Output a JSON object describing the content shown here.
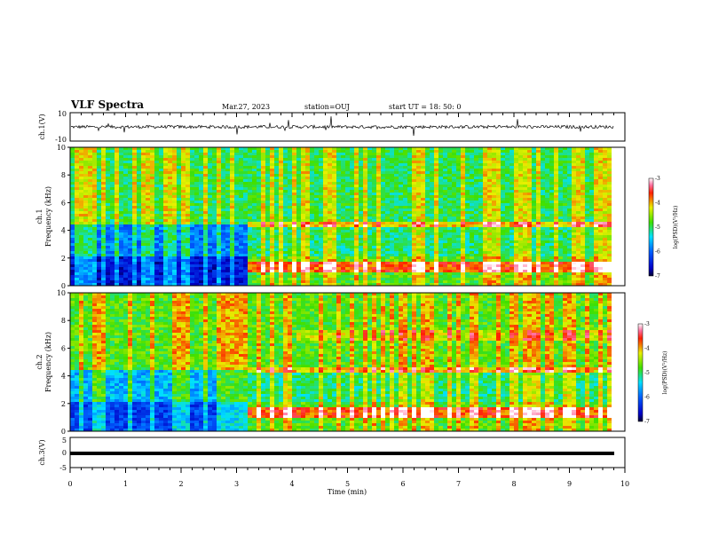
{
  "header": {
    "title": "VLF Spectra",
    "date": "Mar.27, 2023",
    "station": "station=OUJ",
    "start": "start UT =  18: 50: 0"
  },
  "chart_data": [
    {
      "type": "line",
      "panel": "ch1-waveform",
      "ylabel": "ch.1(V)",
      "yticks": [
        "10",
        "-10"
      ],
      "ylim": [
        -10,
        10
      ],
      "xlim": [
        0,
        10
      ]
    },
    {
      "type": "heatmap",
      "panel": "ch1-spectrogram",
      "ylabel": "ch.1 Frequency (kHz)",
      "ylabel_lines": [
        "ch.1",
        "Frequency (kHz)"
      ],
      "yticks": [
        "0",
        "2",
        "4",
        "6",
        "8",
        "10"
      ],
      "ylim": [
        0,
        10
      ],
      "xlim": [
        0,
        10
      ],
      "colorbar": {
        "label": "log(PSD)(V²/Hz)",
        "ticks": [
          "-3",
          "-4",
          "-5",
          "-6",
          "-7"
        ],
        "range": [
          -7,
          -3
        ]
      }
    },
    {
      "type": "heatmap",
      "panel": "ch2-spectrogram",
      "ylabel": "ch.2 Frequency (kHz)",
      "ylabel_lines": [
        "ch.2",
        "Frequency (kHz)"
      ],
      "yticks": [
        "0",
        "2",
        "4",
        "6",
        "8",
        "10"
      ],
      "ylim": [
        0,
        10
      ],
      "xlim": [
        0,
        10
      ],
      "colorbar": {
        "label": "log(PSD)(V²/Hz)",
        "ticks": [
          "-3",
          "-4",
          "-5",
          "-6",
          "-7"
        ],
        "range": [
          -7,
          -3
        ]
      }
    },
    {
      "type": "line",
      "panel": "ch3-waveform",
      "ylabel": "ch.3(V)",
      "yticks": [
        "5",
        "0",
        "-5"
      ],
      "ylim": [
        -5,
        5
      ],
      "xlim": [
        0,
        10
      ],
      "xlabel": "Time (min)",
      "xticks": [
        "0",
        "1",
        "2",
        "3",
        "4",
        "5",
        "6",
        "7",
        "8",
        "9",
        "10"
      ]
    }
  ]
}
